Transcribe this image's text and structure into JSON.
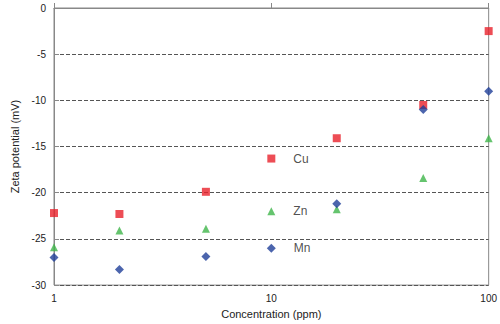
{
  "chart_data": {
    "type": "scatter",
    "xlabel": "Concentration (ppm)",
    "ylabel": "Zeta potential (mV)",
    "x": [
      1,
      2,
      5,
      10,
      20,
      50,
      100
    ],
    "series": [
      {
        "name": "Cu",
        "color": "#e8202a",
        "marker": "square",
        "values": [
          -22.2,
          -22.3,
          -19.9,
          -16.3,
          -14.1,
          -10.5,
          -2.5
        ]
      },
      {
        "name": "Zn",
        "color": "#3fb54a",
        "marker": "triangle",
        "values": [
          -25.9,
          -24.1,
          -23.9,
          -22.0,
          -21.8,
          -18.4,
          -14.1
        ]
      },
      {
        "name": "Mn",
        "color": "#1f3f99",
        "marker": "diamond",
        "values": [
          -27.0,
          -28.3,
          -26.9,
          -26.0,
          -21.2,
          -11.0,
          -9.0
        ]
      }
    ],
    "xlim": [
      1,
      100
    ],
    "xticks": [
      1,
      10,
      100
    ],
    "ylim": [
      -30,
      0
    ],
    "yticks": [
      -30,
      -25,
      -20,
      -15,
      -10,
      -5,
      0
    ],
    "log": "x",
    "grid": true
  }
}
